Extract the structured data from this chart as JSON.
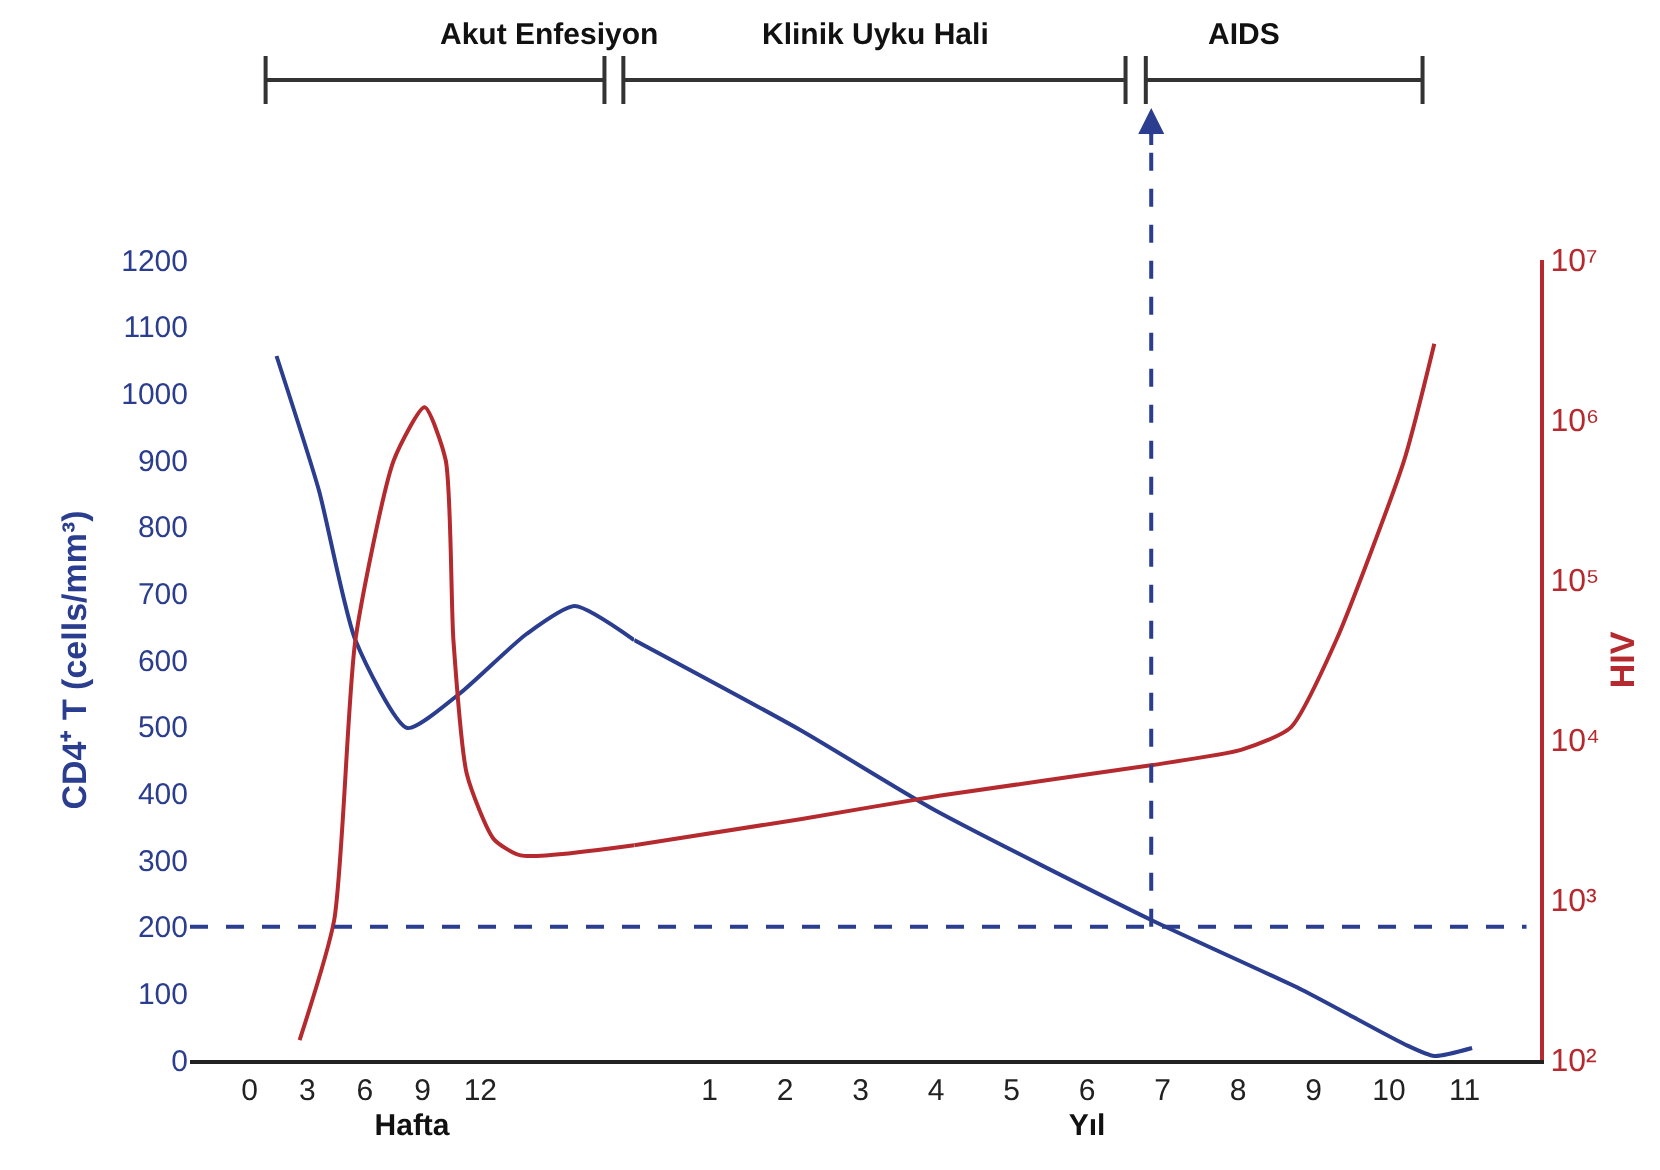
{
  "chart_data": [
    {
      "type": "line",
      "ylabel": "CD4⁺ T (cells/mm³)",
      "xlabel": "Hafta",
      "xlim": [
        -3.1,
        20
      ],
      "ylim": [
        0,
        1200
      ],
      "y2lim": [
        100,
        10000000
      ],
      "log": "y2",
      "marker": "none",
      "line_style": "solid",
      "tick_labels": [
        "x",
        "y"
      ],
      "xticks": [
        0,
        3,
        6,
        9,
        12
      ],
      "yticks": [
        0,
        100,
        200,
        300,
        400,
        500,
        600,
        700,
        800,
        900,
        1000,
        1100,
        1200
      ],
      "series": [
        {
          "color": "#2b3d8f",
          "x": [
            1.4,
            3.6,
            5.5,
            8.2,
            10.9,
            14.4,
            16.9,
            20
          ],
          "values": [
            1056,
            855,
            630,
            498,
            549,
            639,
            681,
            630
          ]
        },
        {
          "color": "#b52a2e",
          "axis": "y2",
          "x": [
            2.6,
            4.4,
            5.5,
            7.5,
            9.1,
            10.2,
            10.6,
            11.3,
            12.7,
            14.1,
            20
          ],
          "values": [
            133,
            750,
            42000,
            560000,
            1200000,
            560000,
            42000,
            6100,
            2400,
            1900,
            2200
          ]
        }
      ],
      "annotations": [
        "Akut Enfesiyon"
      ]
    },
    {
      "type": "line",
      "y2label": "HIV",
      "xlabel": "Yıl",
      "xlim": [
        0,
        12
      ],
      "ylim": [
        0,
        1200
      ],
      "y2lim": [
        100,
        10000000
      ],
      "log": "y2",
      "marker": "none",
      "line_style": "solid",
      "tick_labels": [
        "x",
        "y2"
      ],
      "xticks": [
        1,
        2,
        3,
        4,
        5,
        6,
        7,
        8,
        9,
        10,
        11
      ],
      "y2ticks": [
        {
          "value": 100,
          "label": "10²"
        },
        {
          "value": 1000,
          "label": "10³"
        },
        {
          "value": 10000,
          "label": "10⁴"
        },
        {
          "value": 100000,
          "label": "10⁵"
        },
        {
          "value": 1000000,
          "label": "10⁶"
        },
        {
          "value": 10000000,
          "label": "10⁷"
        }
      ],
      "series": [
        {
          "color": "#2b3d8f",
          "x": [
            0,
            2.2,
            3.98,
            6.85,
            8.85,
            10.2,
            10.6,
            11.1
          ],
          "values": [
            630,
            495,
            375,
            210,
            105,
            24,
            6,
            18
          ]
        },
        {
          "color": "#b52a2e",
          "axis": "y2",
          "x": [
            0,
            2.2,
            4.06,
            6.8,
            8.05,
            8.7,
            9.3,
            10.2,
            10.6
          ],
          "values": [
            2200,
            3200,
            4500,
            6900,
            8700,
            12000,
            42000,
            560000,
            3000000
          ]
        }
      ],
      "ref_lines": [
        {
          "axis": "y",
          "value": 200,
          "color": "#2b3d8f",
          "line_style": "dashed"
        },
        {
          "axis": "x",
          "value": 6.85,
          "color": "#2b3d8f",
          "line_style": "dashed"
        }
      ],
      "annotations": [
        "Klinik Uyku Hali",
        "AIDS"
      ]
    }
  ]
}
